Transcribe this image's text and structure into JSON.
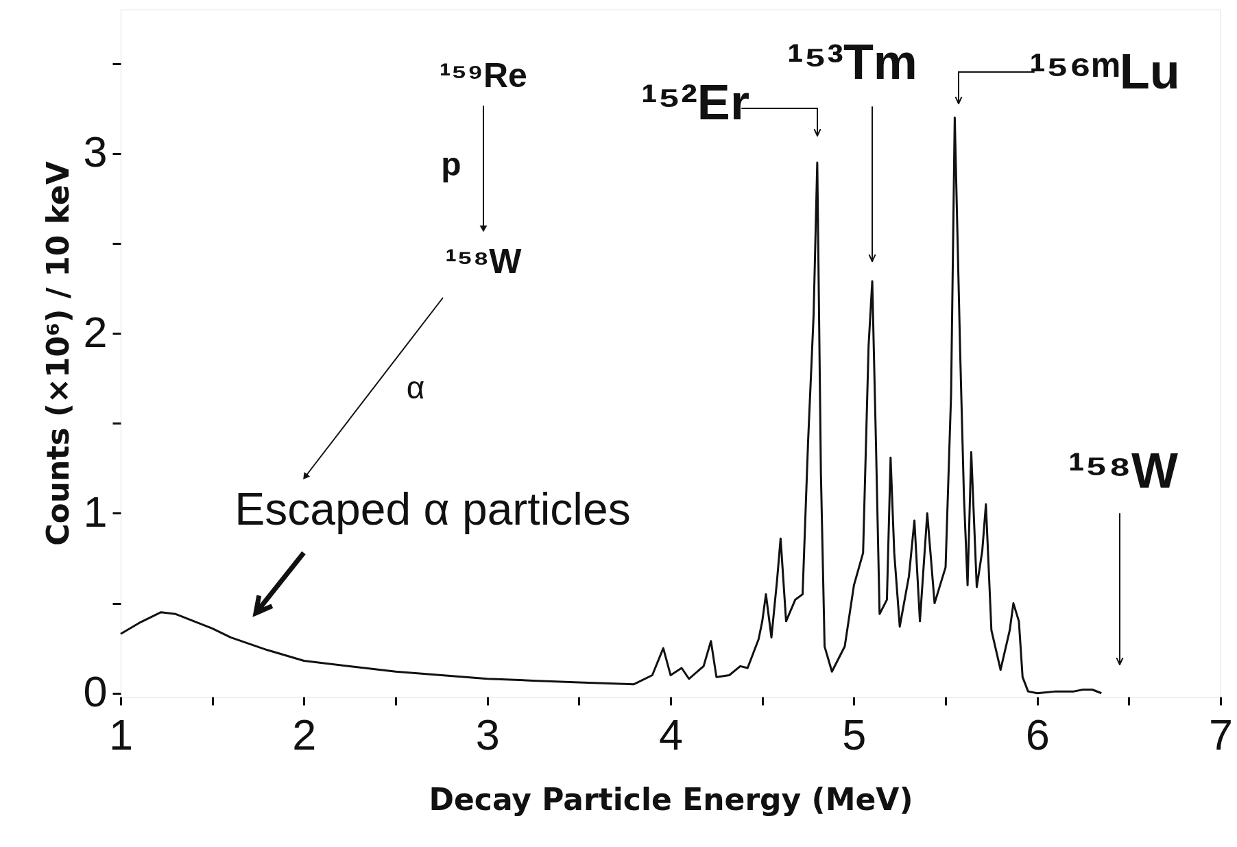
{
  "chart_data": {
    "type": "line",
    "xlabel": "Decay Particle Energy (MeV)",
    "ylabel": "Counts (×10⁶) / 10 keV",
    "x": [
      1.0,
      1.1,
      1.22,
      1.3,
      1.4,
      1.5,
      1.6,
      1.8,
      2.0,
      2.25,
      2.5,
      2.75,
      3.0,
      3.25,
      3.5,
      3.8,
      3.9,
      3.96,
      4.0,
      4.06,
      4.1,
      4.18,
      4.22,
      4.25,
      4.32,
      4.38,
      4.42,
      4.48,
      4.5,
      4.52,
      4.55,
      4.58,
      4.6,
      4.63,
      4.68,
      4.72,
      4.75,
      4.78,
      4.8,
      4.82,
      4.84,
      4.88,
      4.95,
      5.0,
      5.05,
      5.08,
      5.1,
      5.12,
      5.14,
      5.18,
      5.2,
      5.22,
      5.25,
      5.3,
      5.33,
      5.36,
      5.4,
      5.44,
      5.5,
      5.53,
      5.55,
      5.58,
      5.6,
      5.62,
      5.64,
      5.67,
      5.7,
      5.72,
      5.75,
      5.8,
      5.85,
      5.87,
      5.9,
      5.92,
      5.95,
      6.0,
      6.1,
      6.2,
      6.25,
      6.3,
      6.35
    ],
    "series": [
      {
        "color": "#111111",
        "values": [
          0.33,
          0.39,
          0.45,
          0.44,
          0.4,
          0.36,
          0.31,
          0.24,
          0.18,
          0.15,
          0.12,
          0.1,
          0.08,
          0.07,
          0.06,
          0.05,
          0.1,
          0.25,
          0.1,
          0.14,
          0.08,
          0.15,
          0.29,
          0.09,
          0.1,
          0.15,
          0.14,
          0.3,
          0.4,
          0.55,
          0.31,
          0.62,
          0.86,
          0.4,
          0.52,
          0.55,
          1.4,
          2.1,
          2.95,
          1.22,
          0.26,
          0.12,
          0.26,
          0.6,
          0.78,
          1.93,
          2.29,
          1.4,
          0.44,
          0.52,
          1.31,
          0.78,
          0.37,
          0.65,
          0.96,
          0.4,
          1.0,
          0.5,
          0.7,
          1.66,
          3.2,
          1.88,
          1.1,
          0.6,
          1.34,
          0.59,
          0.79,
          1.05,
          0.35,
          0.13,
          0.35,
          0.5,
          0.4,
          0.09,
          0.01,
          0.0,
          0.01,
          0.01,
          0.02,
          0.02,
          0.0
        ]
      }
    ],
    "xlim": [
      1,
      7
    ],
    "ylim": [
      -0.02,
      3.8
    ],
    "xticks": [
      1,
      {
        "value": 1.5,
        "label": null
      },
      2,
      {
        "value": 2.5,
        "label": null
      },
      3,
      {
        "value": 3.5,
        "label": null
      },
      4,
      {
        "value": 4.5,
        "label": null
      },
      5,
      {
        "value": 5.5,
        "label": null
      },
      6,
      {
        "value": 6.5,
        "label": null
      },
      7
    ],
    "yticks": [
      0,
      {
        "value": 0.5,
        "label": null
      },
      1,
      {
        "value": 1.5,
        "label": null
      },
      2,
      {
        "value": 2.5,
        "label": null
      },
      3,
      {
        "value": 3.5,
        "label": null
      }
    ],
    "grid": false,
    "marker": "none",
    "line_style": "solid",
    "annotations": [
      "¹⁵²Er",
      "¹⁵³Tm",
      "¹⁵⁶ᵐLu",
      "¹⁵⁸W",
      "Escaped α particles",
      "¹⁵⁹Re",
      "p",
      "¹⁵⁸W",
      "α"
    ]
  }
}
